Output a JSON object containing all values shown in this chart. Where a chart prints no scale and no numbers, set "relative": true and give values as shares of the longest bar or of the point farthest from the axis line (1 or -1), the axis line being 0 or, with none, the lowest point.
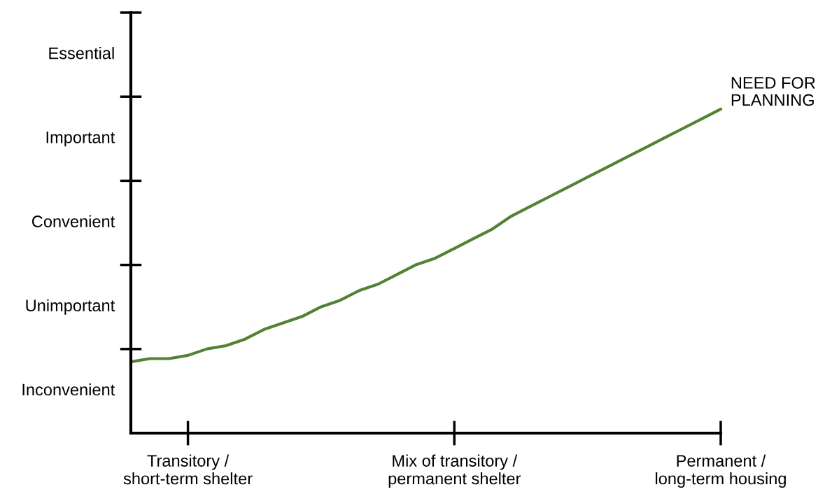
{
  "chart_data": {
    "type": "line",
    "relative": true,
    "categories": [
      null,
      null,
      null,
      "Transitory /\nshort-term shelter",
      null,
      null,
      null,
      null,
      null,
      null,
      null,
      null,
      null,
      null,
      null,
      null,
      null,
      "Mix of transitory /\npermanent shelter",
      null,
      null,
      null,
      null,
      null,
      null,
      null,
      null,
      null,
      null,
      null,
      null,
      null,
      "Permanent /\nlong-term housing"
    ],
    "series": [
      {
        "color": "#548235",
        "values": [
          0.22,
          0.23,
          0.23,
          0.24,
          0.26,
          0.27,
          0.29,
          0.32,
          0.34,
          0.36,
          0.39,
          0.41,
          0.44,
          0.46,
          0.49,
          0.52,
          0.54,
          0.57,
          0.6,
          0.63,
          0.67,
          0.7,
          0.73,
          0.76,
          0.79,
          0.82,
          0.85,
          0.88,
          0.91,
          0.94,
          0.97,
          1
        ]
      }
    ],
    "annotations": [
      "Essential",
      "Important",
      "Convenient",
      "Unimportant",
      "Inconvenient",
      "NEED FOR\nPLANNING"
    ],
    "grid": false,
    "marker": "none",
    "line_style": "solid"
  }
}
